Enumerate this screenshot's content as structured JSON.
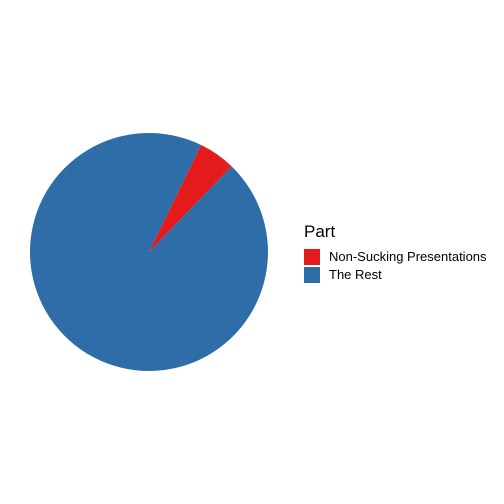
{
  "chart_data": {
    "type": "pie",
    "title": "",
    "legend": {
      "title": "Part",
      "placement": "right"
    },
    "slices": [
      {
        "label": "Non-Sucking Presentations",
        "value": 5,
        "color": "#E41A1C"
      },
      {
        "label": "The Rest",
        "value": 95,
        "color": "#2E6DA8"
      }
    ]
  }
}
